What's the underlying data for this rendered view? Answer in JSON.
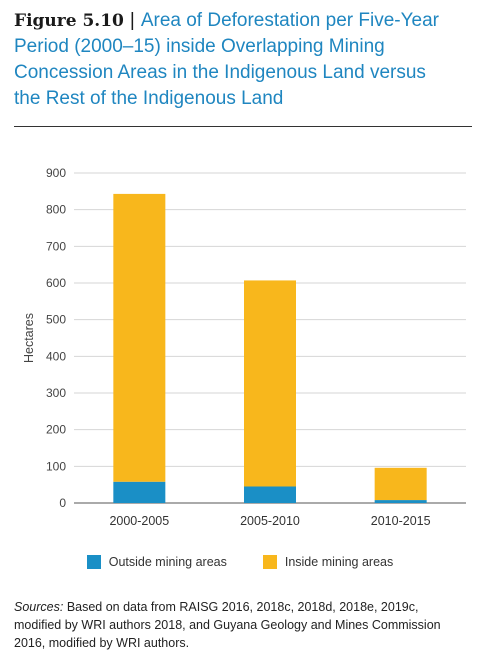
{
  "figure": {
    "label": "Figure 5.10",
    "separator": "|",
    "title": "Area of Deforestation per Five-Year Period (2000–15) inside Overlapping Mining Concession Areas in the Indigenous Land versus the Rest of the Indigenous Land"
  },
  "chart_data": {
    "type": "bar",
    "stacked": true,
    "categories": [
      "2000-2005",
      "2005-2010",
      "2010-2015"
    ],
    "series": [
      {
        "name": "Outside mining areas",
        "color": "#1a8fc6",
        "values": [
          58,
          45,
          8
        ]
      },
      {
        "name": "Inside mining areas",
        "color": "#f8b71c",
        "values": [
          785,
          562,
          88
        ]
      }
    ],
    "ylabel": "Hectares",
    "ylim": [
      0,
      900
    ],
    "yticks": [
      0,
      100,
      200,
      300,
      400,
      500,
      600,
      700,
      800,
      900
    ],
    "grid": true,
    "legend": "bottom"
  },
  "sources": {
    "label": "Sources:",
    "text": " Based on data from RAISG 2016, 2018c, 2018d, 2018e, 2019c, modified by WRI authors 2018, and Guyana Geology and Mines Commission 2016, modified by WRI authors."
  }
}
